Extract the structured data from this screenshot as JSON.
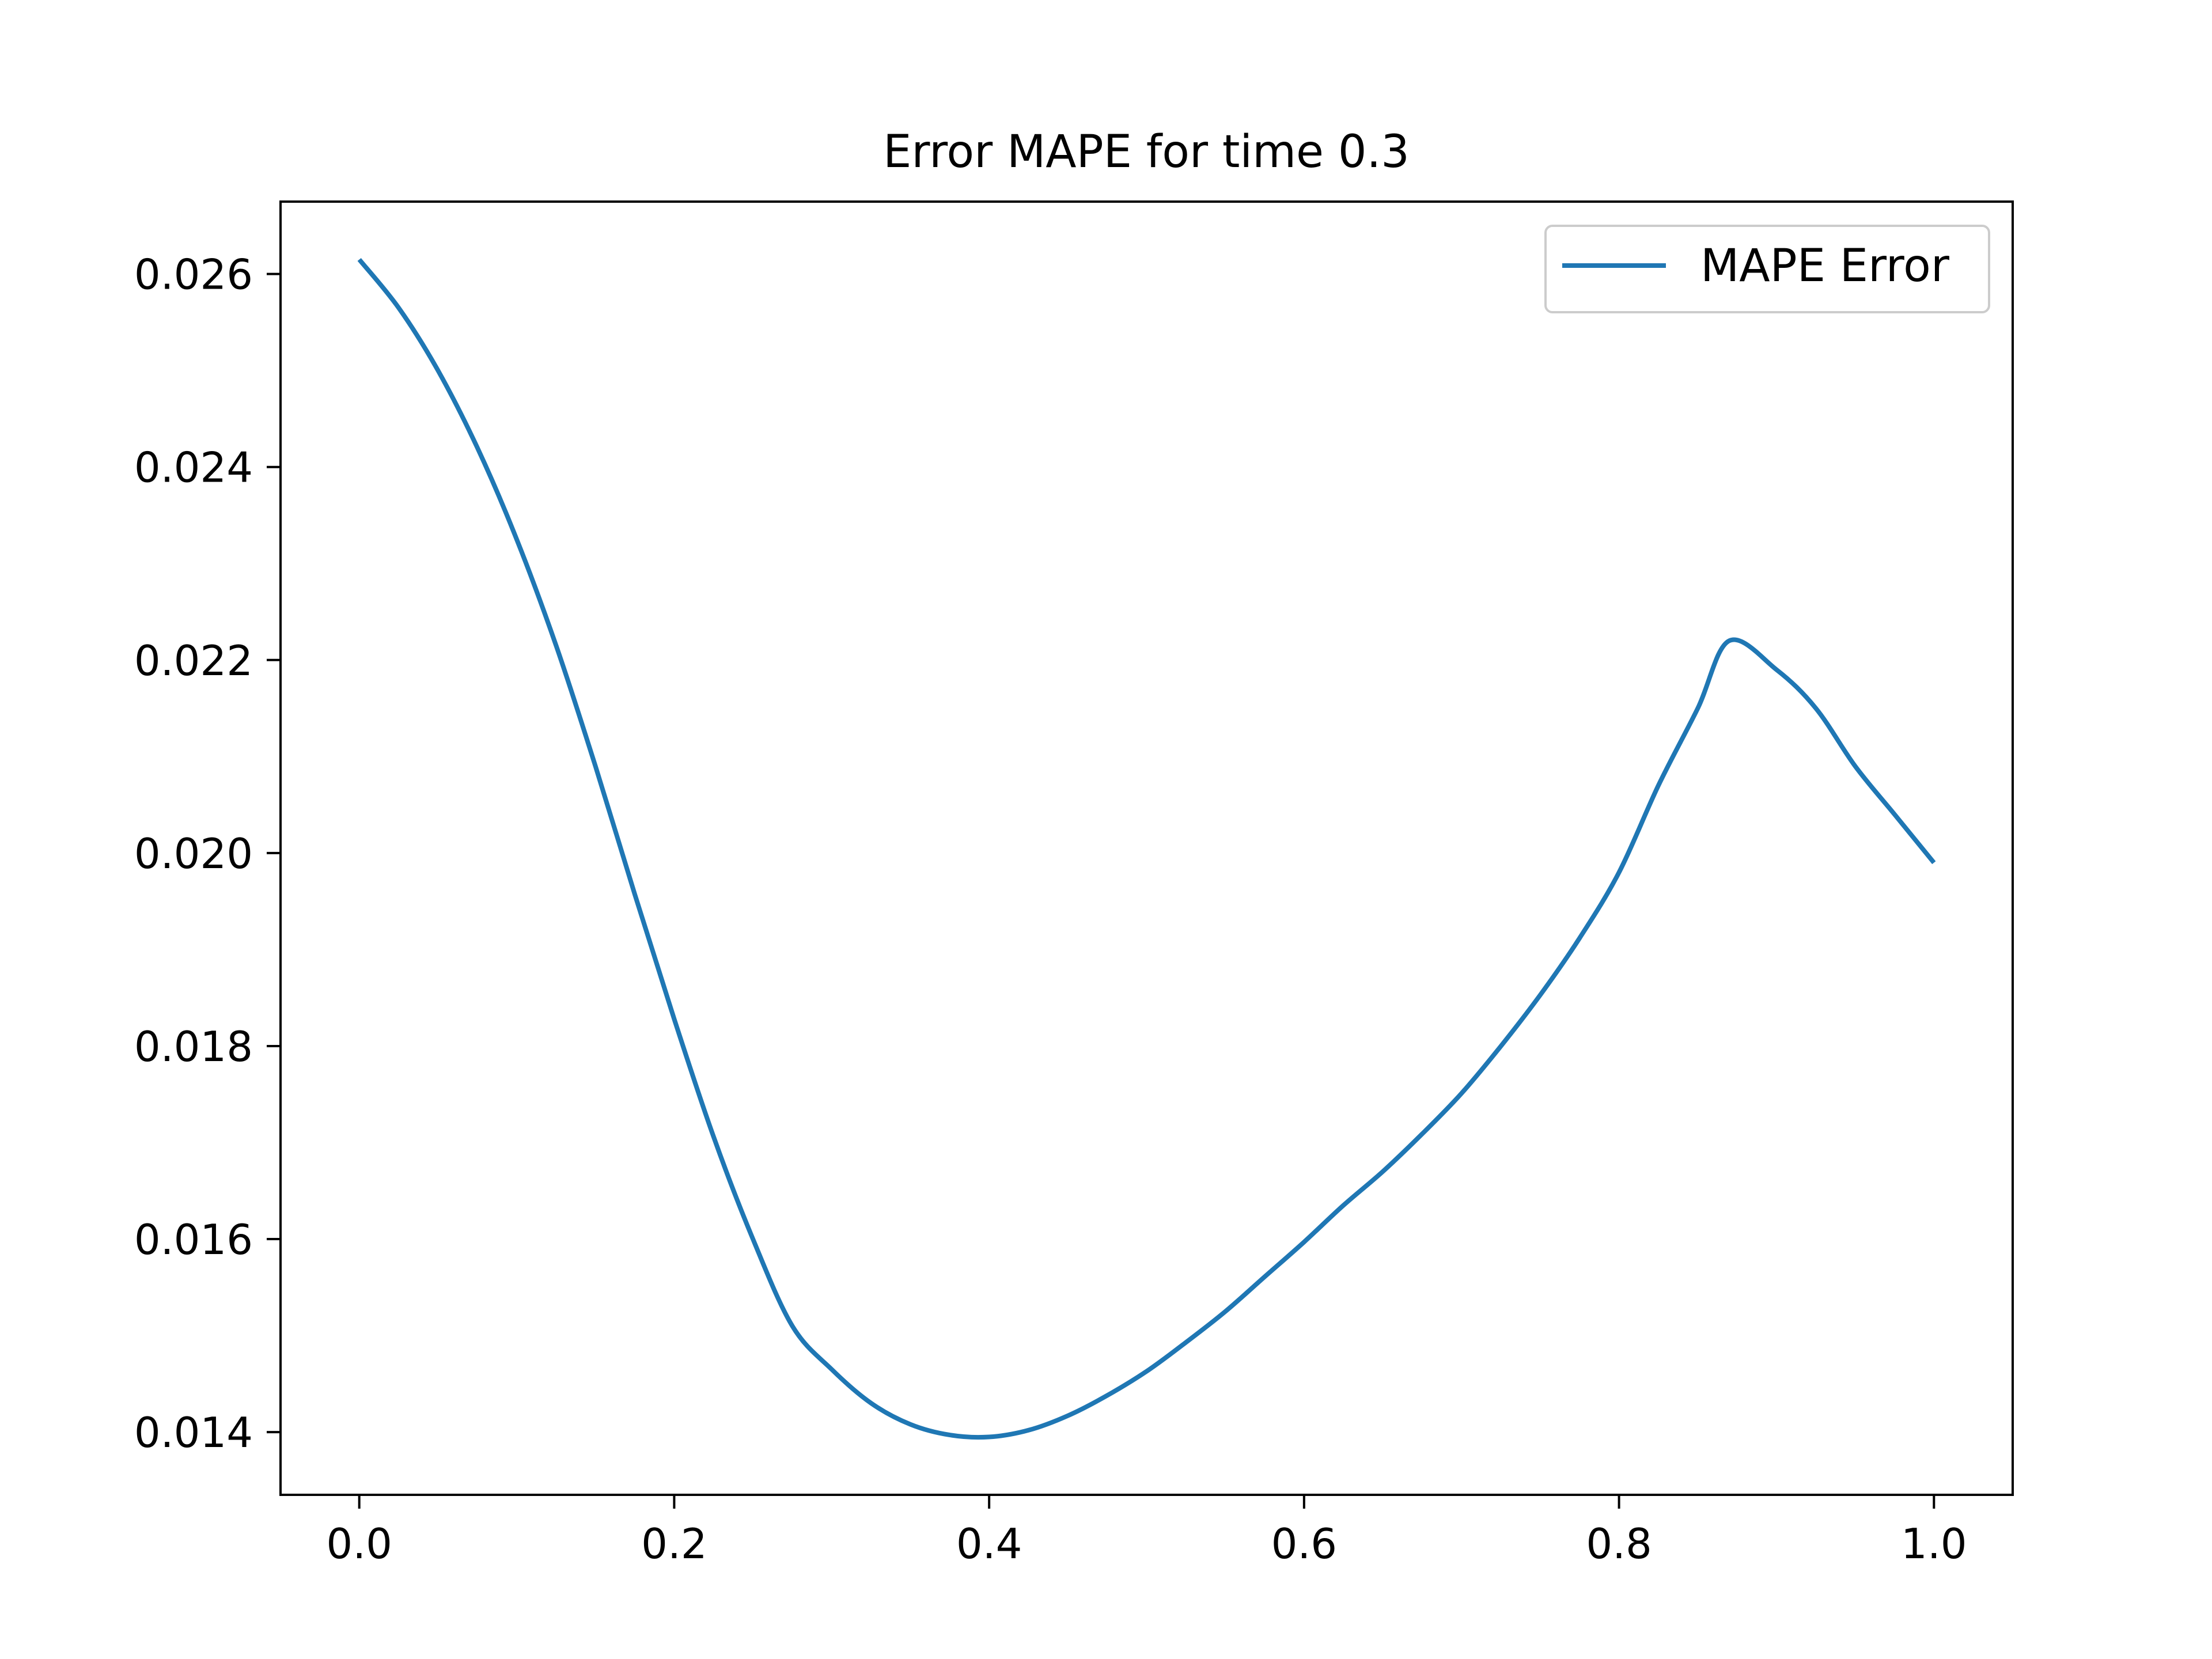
{
  "chart_data": {
    "type": "line",
    "title": "Error MAPE for time 0.3",
    "xlabel": "",
    "ylabel": "",
    "xlim": [
      -0.05,
      1.05
    ],
    "ylim": [
      0.01335,
      0.02675
    ],
    "xticks": [
      0.0,
      0.2,
      0.4,
      0.6,
      0.8,
      1.0
    ],
    "xtick_labels": [
      "0.0",
      "0.2",
      "0.4",
      "0.6",
      "0.8",
      "1.0"
    ],
    "yticks": [
      0.014,
      0.016,
      0.018,
      0.02,
      0.022,
      0.024,
      0.026
    ],
    "ytick_labels": [
      "0.014",
      "0.016",
      "0.018",
      "0.020",
      "0.022",
      "0.024",
      "0.026"
    ],
    "grid": false,
    "legend": {
      "position": "top-right",
      "entries": [
        "MAPE Error"
      ]
    },
    "series": [
      {
        "name": "MAPE Error",
        "color": "#1f77b4",
        "x": [
          0.0,
          0.025,
          0.05,
          0.075,
          0.1,
          0.125,
          0.15,
          0.175,
          0.2,
          0.225,
          0.25,
          0.275,
          0.3,
          0.325,
          0.35,
          0.375,
          0.4,
          0.425,
          0.45,
          0.475,
          0.5,
          0.525,
          0.55,
          0.575,
          0.6,
          0.625,
          0.65,
          0.675,
          0.7,
          0.725,
          0.75,
          0.775,
          0.8,
          0.825,
          0.85,
          0.87,
          0.9,
          0.925,
          0.95,
          0.975,
          1.0
        ],
        "y": [
          0.02615,
          0.02565,
          0.025,
          0.0242,
          0.02325,
          0.02215,
          0.0209,
          0.01957,
          0.01828,
          0.01706,
          0.016,
          0.0151,
          0.01465,
          0.0143,
          0.01408,
          0.01397,
          0.01395,
          0.01402,
          0.01417,
          0.01438,
          0.01463,
          0.01493,
          0.01525,
          0.01561,
          0.01597,
          0.01635,
          0.0167,
          0.01709,
          0.01751,
          0.018,
          0.01853,
          0.01912,
          0.0198,
          0.0207,
          0.0215,
          0.0222,
          0.0219,
          0.0215,
          0.0209,
          0.0204,
          0.0199
        ]
      }
    ]
  }
}
